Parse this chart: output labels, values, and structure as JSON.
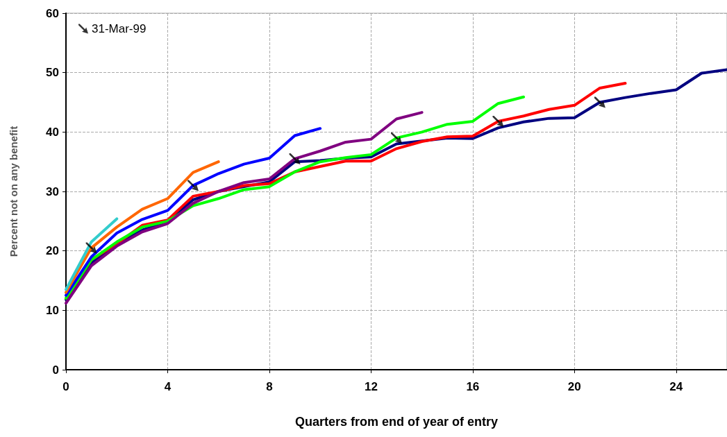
{
  "chart_data": {
    "type": "line",
    "xlabel": "Quarters from end of year of entry",
    "ylabel": "Percent not on any benefit",
    "xlim": [
      0,
      26
    ],
    "xticks": [
      0,
      4,
      8,
      12,
      16,
      20,
      24
    ],
    "ylim": [
      0,
      60
    ],
    "yticks": [
      0,
      10,
      20,
      30,
      40,
      50,
      60
    ],
    "grid": true,
    "legend": "top left",
    "marker": "none",
    "line_style": "solid",
    "series": [
      {
        "color": "#000080",
        "x": [
          0,
          1,
          2,
          3,
          4,
          5,
          6,
          7,
          8,
          9,
          10,
          11,
          12,
          13,
          14,
          15,
          16,
          17,
          18,
          19,
          20,
          21,
          22,
          23,
          24,
          25,
          26
        ],
        "values": [
          11.8,
          18,
          21.2,
          23.5,
          25,
          28.6,
          30,
          30.8,
          31.6,
          35,
          35.2,
          35.6,
          35.8,
          38,
          38.5,
          39,
          38.9,
          40.7,
          41.7,
          42.3,
          42.4,
          45,
          45.8,
          46.5,
          47.1,
          49.9,
          50.5
        ]
      },
      {
        "color": "#ff0000",
        "x": [
          0,
          1,
          2,
          3,
          4,
          5,
          6,
          7,
          8,
          9,
          10,
          11,
          12,
          13,
          14,
          15,
          16,
          17,
          18,
          19,
          20,
          21,
          22
        ],
        "values": [
          12,
          18.5,
          21.2,
          24.3,
          25.2,
          29.2,
          30,
          31,
          31.3,
          33.3,
          34.2,
          35.1,
          35.1,
          37.2,
          38.4,
          39.2,
          39.3,
          41.8,
          42.7,
          43.8,
          44.5,
          47.4,
          48.2
        ]
      },
      {
        "color": "#00ff00",
        "x": [
          0,
          1,
          2,
          3,
          4,
          5,
          6,
          7,
          8,
          9,
          10,
          11,
          12,
          13,
          14,
          15,
          16,
          17,
          18
        ],
        "values": [
          12,
          18.5,
          21.5,
          24,
          25,
          27.6,
          28.8,
          30.3,
          30.8,
          33.3,
          35,
          35.7,
          36.2,
          39,
          40,
          41.3,
          41.8,
          44.8,
          45.9
        ]
      },
      {
        "color": "#800080",
        "x": [
          0,
          1,
          2,
          3,
          4,
          5,
          6,
          7,
          8,
          9,
          10,
          11,
          12,
          13,
          14
        ],
        "values": [
          11.2,
          17.5,
          20.8,
          23.2,
          24.6,
          28,
          30,
          31.5,
          32.1,
          35.5,
          36.8,
          38.3,
          38.8,
          42.2,
          43.3
        ]
      },
      {
        "color": "#0000ff",
        "x": [
          0,
          1,
          2,
          3,
          4,
          5,
          6,
          7,
          8,
          9,
          10
        ],
        "values": [
          12.5,
          19,
          23,
          25.3,
          26.8,
          31,
          33,
          34.6,
          35.6,
          39.4,
          40.6
        ]
      },
      {
        "color": "#ff6600",
        "x": [
          0,
          1,
          2,
          3,
          4,
          5,
          6
        ],
        "values": [
          13,
          20.5,
          24,
          27,
          28.8,
          33.2,
          35
        ]
      },
      {
        "color": "#33cccc",
        "x": [
          0,
          1,
          2
        ],
        "values": [
          13.5,
          21.5,
          25.4
        ]
      },
      {
        "type": "scatter",
        "name": "31-Mar-99",
        "color": "#000000",
        "x": [
          1,
          5,
          9,
          13,
          17,
          21
        ],
        "values": [
          20.5,
          31,
          35.5,
          39,
          41.8,
          45
        ]
      }
    ]
  }
}
